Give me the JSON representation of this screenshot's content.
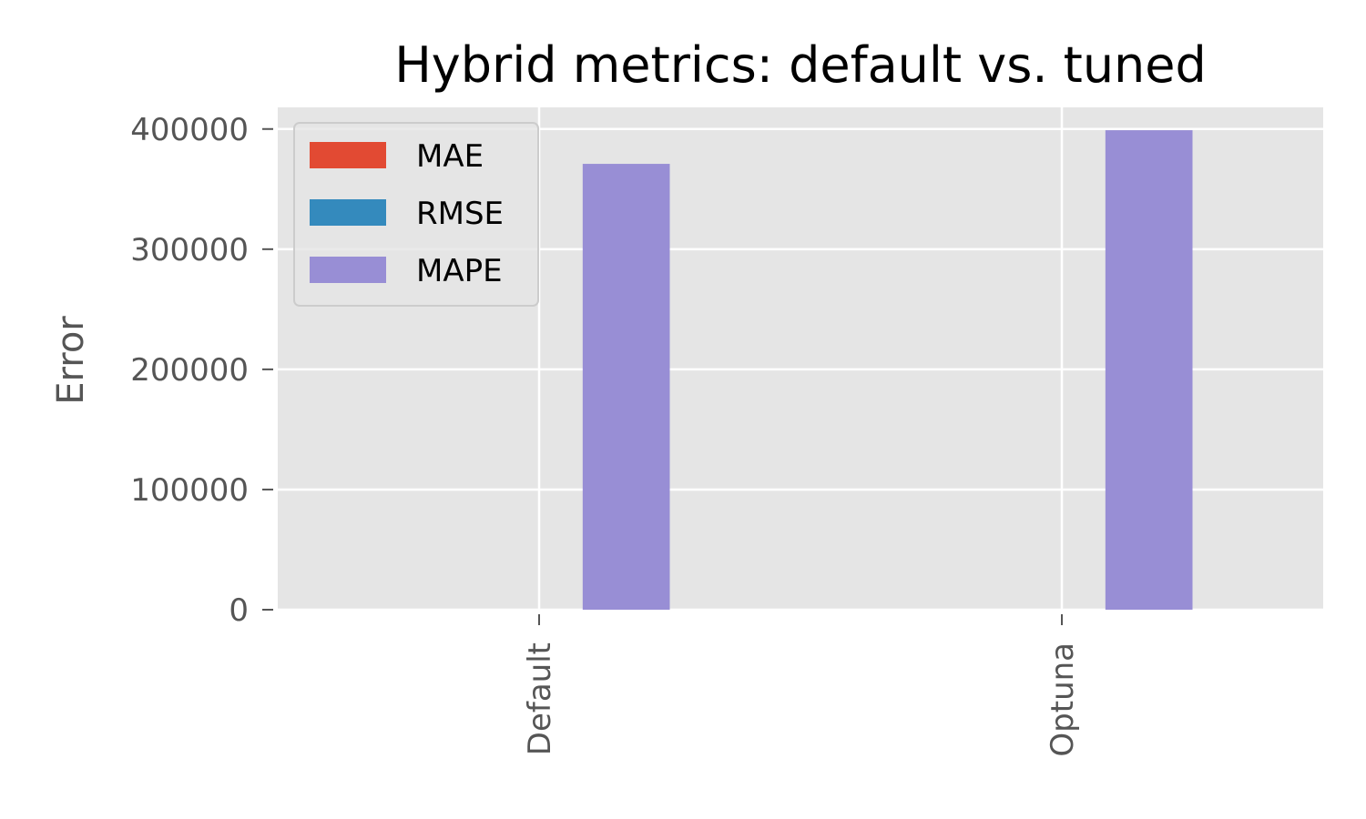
{
  "chart_data": {
    "type": "bar",
    "title": "Hybrid metrics: default vs. tuned",
    "xlabel": "",
    "ylabel": "Error",
    "categories": [
      "Default",
      "Optuna"
    ],
    "ylim": [
      0,
      418000
    ],
    "yticks": [
      0,
      100000,
      200000,
      300000,
      400000
    ],
    "ytick_labels": [
      "0",
      "100000",
      "200000",
      "300000",
      "400000"
    ],
    "grid": true,
    "legend_position": "top-left",
    "series": [
      {
        "name": "MAE",
        "color": "#E24A33",
        "values": [
          0,
          0
        ]
      },
      {
        "name": "RMSE",
        "color": "#348ABD",
        "values": [
          0,
          0
        ]
      },
      {
        "name": "MAPE",
        "color": "#988ED5",
        "values": [
          371000,
          399000
        ]
      }
    ]
  }
}
